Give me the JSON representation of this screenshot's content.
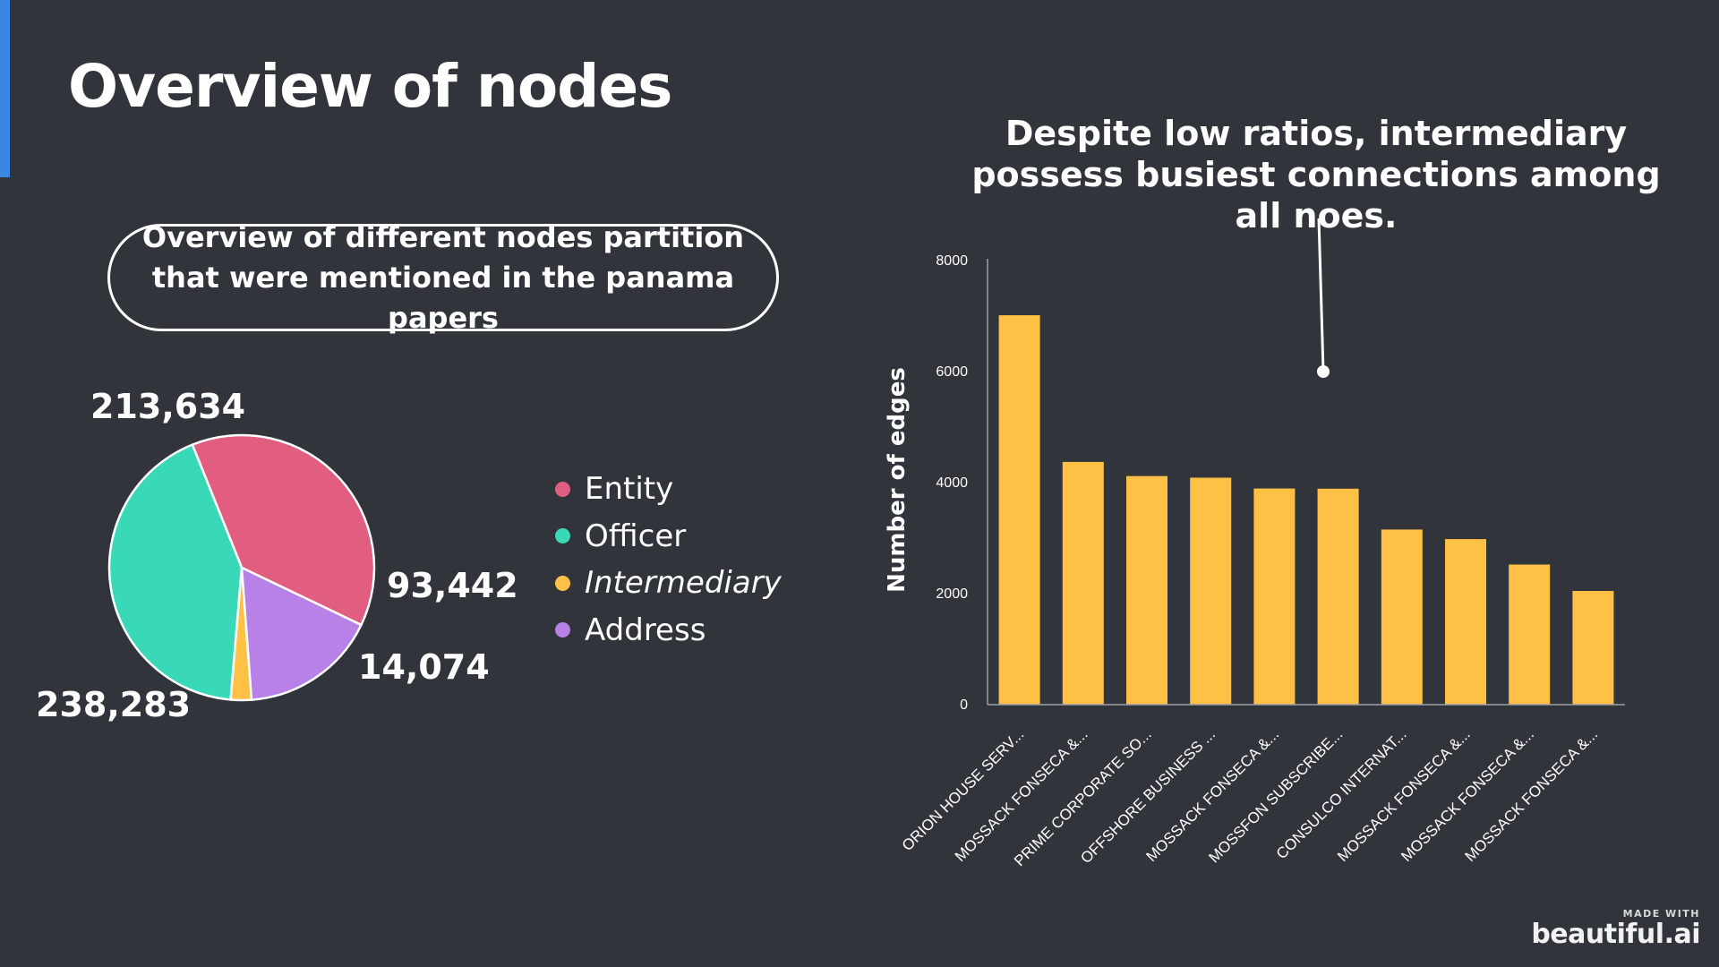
{
  "title": "Overview of nodes",
  "pill_text": "Overview of different nodes partition that were mentioned in the panama papers",
  "annotation": "Despite low ratios, intermediary possess busiest connections among all noes.",
  "branding": {
    "made_with": "MADE WITH",
    "name": "beautiful.ai"
  },
  "colors": {
    "accent": "#3b86e0",
    "background": "#31343b",
    "bar": "#ffc145"
  },
  "chart_data": [
    {
      "type": "pie",
      "categories": [
        "Entity",
        "Officer",
        "Intermediary",
        "Address"
      ],
      "values": [
        213634,
        238283,
        14074,
        93442
      ],
      "labels": [
        "213,634",
        "238,283",
        "14,074",
        "93,442"
      ],
      "colors": [
        "#e25e81",
        "#39d9b8",
        "#ffc145",
        "#b781e8"
      ],
      "legend": [
        "Entity",
        "Officer",
        "Intermediary",
        "Address"
      ],
      "legend_placement": "right"
    },
    {
      "type": "bar",
      "categories": [
        "ORION HOUSE SERV...",
        "MOSSACK FONSECA &...",
        "PRIME CORPORATE SO...",
        "OFFSHORE BUSINESS ...",
        "MOSSACK FONSECA &...",
        "MOSSFON SUBSCRIBE...",
        "CONSULCO INTERNAT...",
        "MOSSACK FONSECA &...",
        "MOSSACK FONSECA &...",
        "MOSSACK FONSECA &..."
      ],
      "values": [
        7014,
        4372,
        4117,
        4088,
        3894,
        3890,
        3155,
        2983,
        2524,
        2049
      ],
      "ylabel": "Number of edges",
      "ylim": [
        0,
        8000
      ],
      "yticks": [
        0,
        2000,
        4000,
        6000,
        8000
      ],
      "grid": false,
      "callout_value": 6000
    }
  ]
}
